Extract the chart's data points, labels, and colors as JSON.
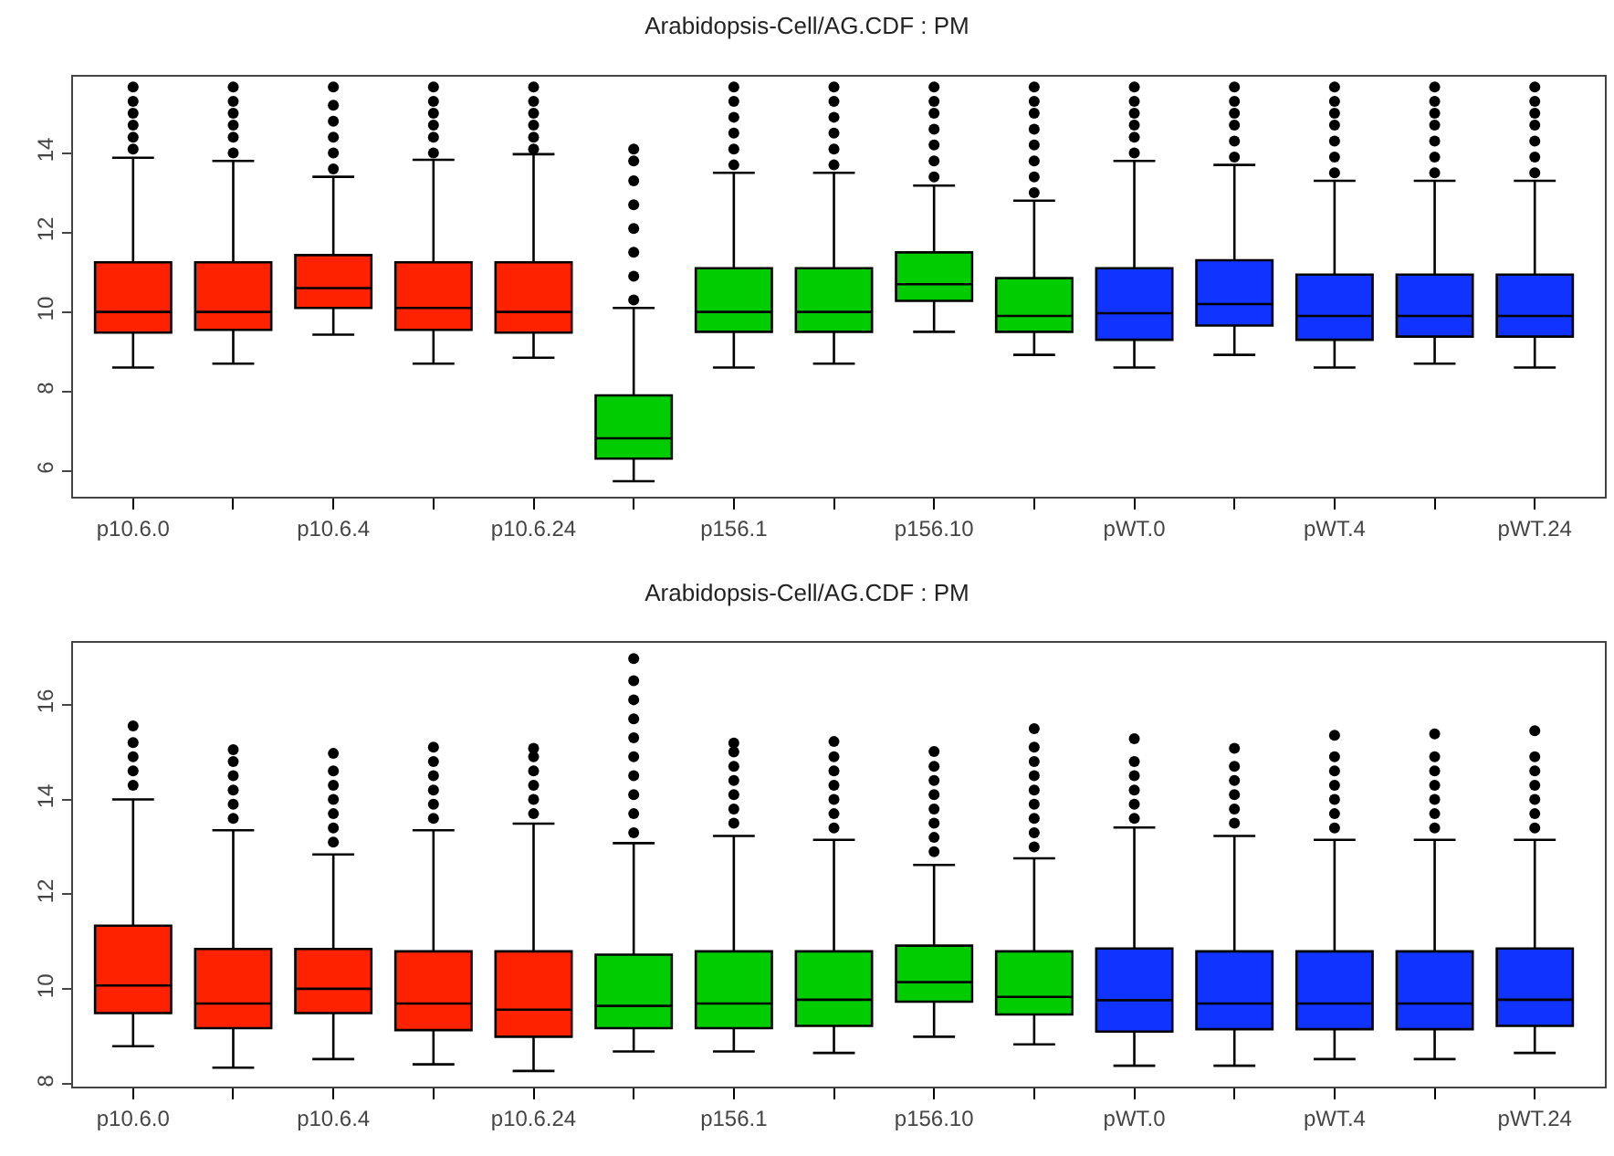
{
  "chart_data": [
    {
      "type": "box",
      "title": "Arabidopsis-Cell/AG.CDF : PM",
      "categories": [
        "p10.6.0",
        null,
        "p10.6.4",
        null,
        "p10.6.24",
        null,
        "p156.1",
        null,
        "p156.10",
        null,
        "pWT.0",
        null,
        "pWT.4",
        null,
        "pWT.24"
      ],
      "colors": [
        "#ff2200",
        "#ff2200",
        "#ff2200",
        "#ff2200",
        "#ff2200",
        "#00cc00",
        "#00cc00",
        "#00cc00",
        "#00cc00",
        "#00cc00",
        "#1133ff",
        "#1133ff",
        "#1133ff",
        "#1133ff",
        "#1133ff"
      ],
      "ylim": [
        5.35,
        15.92
      ],
      "yticks": [
        6,
        8,
        10,
        12,
        14
      ],
      "boxes": [
        {
          "low": 8.6,
          "q1": 9.48,
          "median": 10.0,
          "q3": 11.25,
          "high": 13.88,
          "outliers": [
            14.1,
            14.4,
            14.7,
            15.0,
            15.3,
            15.66
          ]
        },
        {
          "low": 8.7,
          "q1": 9.55,
          "median": 10.0,
          "q3": 11.25,
          "high": 13.8,
          "outliers": [
            14.0,
            14.4,
            14.7,
            15.0,
            15.3,
            15.66
          ]
        },
        {
          "low": 9.43,
          "q1": 10.1,
          "median": 10.6,
          "q3": 11.43,
          "high": 13.4,
          "outliers": [
            13.6,
            14.0,
            14.4,
            14.8,
            15.2,
            15.66
          ]
        },
        {
          "low": 8.7,
          "q1": 9.55,
          "median": 10.1,
          "q3": 11.25,
          "high": 13.83,
          "outliers": [
            14.0,
            14.4,
            14.7,
            15.0,
            15.3,
            15.66
          ]
        },
        {
          "low": 8.85,
          "q1": 9.48,
          "median": 10.0,
          "q3": 11.25,
          "high": 13.97,
          "outliers": [
            14.1,
            14.4,
            14.7,
            15.0,
            15.3,
            15.66
          ]
        },
        {
          "low": 5.74,
          "q1": 6.31,
          "median": 6.82,
          "q3": 7.9,
          "high": 10.1,
          "outliers": [
            10.3,
            10.9,
            11.5,
            12.1,
            12.7,
            13.3,
            13.8,
            14.1
          ]
        },
        {
          "low": 8.6,
          "q1": 9.5,
          "median": 10.0,
          "q3": 11.1,
          "high": 13.5,
          "outliers": [
            13.7,
            14.1,
            14.5,
            14.9,
            15.3,
            15.66
          ]
        },
        {
          "low": 8.7,
          "q1": 9.5,
          "median": 10.0,
          "q3": 11.1,
          "high": 13.5,
          "outliers": [
            13.7,
            14.1,
            14.5,
            14.9,
            15.3,
            15.66
          ]
        },
        {
          "low": 9.5,
          "q1": 10.28,
          "median": 10.7,
          "q3": 11.5,
          "high": 13.18,
          "outliers": [
            13.4,
            13.8,
            14.2,
            14.6,
            15.0,
            15.3,
            15.66
          ]
        },
        {
          "low": 8.92,
          "q1": 9.5,
          "median": 9.9,
          "q3": 10.85,
          "high": 12.8,
          "outliers": [
            13.0,
            13.4,
            13.8,
            14.2,
            14.6,
            15.0,
            15.3,
            15.66
          ]
        },
        {
          "low": 8.6,
          "q1": 9.3,
          "median": 9.97,
          "q3": 11.1,
          "high": 13.8,
          "outliers": [
            14.0,
            14.4,
            14.7,
            15.0,
            15.3,
            15.66
          ]
        },
        {
          "low": 8.92,
          "q1": 9.66,
          "median": 10.2,
          "q3": 11.3,
          "high": 13.7,
          "outliers": [
            13.9,
            14.3,
            14.7,
            15.0,
            15.3,
            15.66
          ]
        },
        {
          "low": 8.6,
          "q1": 9.3,
          "median": 9.9,
          "q3": 10.94,
          "high": 13.3,
          "outliers": [
            13.5,
            13.9,
            14.3,
            14.7,
            15.0,
            15.3,
            15.66
          ]
        },
        {
          "low": 8.7,
          "q1": 9.38,
          "median": 9.9,
          "q3": 10.94,
          "high": 13.3,
          "outliers": [
            13.5,
            13.9,
            14.3,
            14.7,
            15.0,
            15.3,
            15.66
          ]
        },
        {
          "low": 8.6,
          "q1": 9.38,
          "median": 9.9,
          "q3": 10.94,
          "high": 13.3,
          "outliers": [
            13.5,
            13.9,
            14.3,
            14.7,
            15.0,
            15.3,
            15.66
          ]
        }
      ]
    },
    {
      "type": "box",
      "title": "Arabidopsis-Cell/AG.CDF : PM",
      "categories": [
        "p10.6.0",
        null,
        "p10.6.4",
        null,
        "p10.6.24",
        null,
        "p156.1",
        null,
        "p156.10",
        null,
        "pWT.0",
        null,
        "pWT.4",
        null,
        "pWT.24"
      ],
      "colors": [
        "#ff2200",
        "#ff2200",
        "#ff2200",
        "#ff2200",
        "#ff2200",
        "#00cc00",
        "#00cc00",
        "#00cc00",
        "#00cc00",
        "#00cc00",
        "#1133ff",
        "#1133ff",
        "#1133ff",
        "#1133ff",
        "#1133ff"
      ],
      "ylim": [
        7.95,
        17.3
      ],
      "yticks": [
        8,
        10,
        12,
        14,
        16
      ],
      "boxes": [
        {
          "low": 8.8,
          "q1": 9.5,
          "median": 10.08,
          "q3": 11.34,
          "high": 14.0,
          "outliers": [
            14.3,
            14.6,
            14.9,
            15.2,
            15.55
          ]
        },
        {
          "low": 8.35,
          "q1": 9.18,
          "median": 9.7,
          "q3": 10.85,
          "high": 13.35,
          "outliers": [
            13.6,
            13.9,
            14.2,
            14.5,
            14.8,
            15.05
          ]
        },
        {
          "low": 8.53,
          "q1": 9.5,
          "median": 10.01,
          "q3": 10.85,
          "high": 12.84,
          "outliers": [
            13.1,
            13.4,
            13.7,
            14.0,
            14.3,
            14.6,
            14.97
          ]
        },
        {
          "low": 8.42,
          "q1": 9.14,
          "median": 9.7,
          "q3": 10.8,
          "high": 13.35,
          "outliers": [
            13.6,
            13.9,
            14.2,
            14.5,
            14.8,
            15.1
          ]
        },
        {
          "low": 8.28,
          "q1": 9.0,
          "median": 9.57,
          "q3": 10.8,
          "high": 13.49,
          "outliers": [
            13.7,
            14.0,
            14.3,
            14.6,
            14.9,
            15.08
          ]
        },
        {
          "low": 8.69,
          "q1": 9.18,
          "median": 9.65,
          "q3": 10.73,
          "high": 13.08,
          "outliers": [
            13.3,
            13.7,
            14.1,
            14.5,
            14.9,
            15.3,
            15.7,
            16.1,
            16.5,
            16.97
          ]
        },
        {
          "low": 8.69,
          "q1": 9.18,
          "median": 9.7,
          "q3": 10.8,
          "high": 13.23,
          "outliers": [
            13.5,
            13.8,
            14.1,
            14.4,
            14.7,
            15.0,
            15.19
          ]
        },
        {
          "low": 8.66,
          "q1": 9.23,
          "median": 9.78,
          "q3": 10.8,
          "high": 13.15,
          "outliers": [
            13.4,
            13.7,
            14.0,
            14.3,
            14.6,
            14.9,
            15.22
          ]
        },
        {
          "low": 9.0,
          "q1": 9.74,
          "median": 10.15,
          "q3": 10.92,
          "high": 12.62,
          "outliers": [
            12.9,
            13.2,
            13.5,
            13.8,
            14.1,
            14.4,
            14.7,
            15.01
          ]
        },
        {
          "low": 8.84,
          "q1": 9.47,
          "median": 9.84,
          "q3": 10.8,
          "high": 12.76,
          "outliers": [
            13.0,
            13.3,
            13.6,
            13.9,
            14.2,
            14.5,
            14.8,
            15.1,
            15.49
          ]
        },
        {
          "low": 8.39,
          "q1": 9.11,
          "median": 9.77,
          "q3": 10.86,
          "high": 13.41,
          "outliers": [
            13.6,
            13.9,
            14.2,
            14.5,
            14.8,
            15.28
          ]
        },
        {
          "low": 8.39,
          "q1": 9.16,
          "median": 9.7,
          "q3": 10.8,
          "high": 13.23,
          "outliers": [
            13.5,
            13.8,
            14.1,
            14.4,
            14.7,
            15.08
          ]
        },
        {
          "low": 8.53,
          "q1": 9.16,
          "median": 9.7,
          "q3": 10.8,
          "high": 13.15,
          "outliers": [
            13.4,
            13.7,
            14.0,
            14.3,
            14.6,
            14.9,
            15.35
          ]
        },
        {
          "low": 8.53,
          "q1": 9.16,
          "median": 9.7,
          "q3": 10.8,
          "high": 13.15,
          "outliers": [
            13.4,
            13.7,
            14.0,
            14.3,
            14.6,
            14.9,
            15.38
          ]
        },
        {
          "low": 8.66,
          "q1": 9.23,
          "median": 9.78,
          "q3": 10.86,
          "high": 13.15,
          "outliers": [
            13.4,
            13.7,
            14.0,
            14.3,
            14.6,
            14.9,
            15.45
          ]
        }
      ]
    }
  ]
}
